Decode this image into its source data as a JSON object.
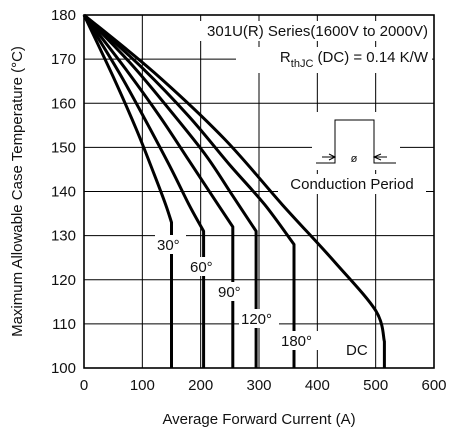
{
  "chart_data": {
    "type": "line",
    "title": "301U(R) Series(1600V to 2000V)",
    "rth_label": {
      "prefix": "R",
      "sub": "thJC",
      "suffix": " (DC) = 0.14 K/W"
    },
    "inset_label": "Conduction Period",
    "inset_symbol": "ø",
    "xlabel": "Average Forward Current (A)",
    "ylabel": "Maximum Allowable Case Temperature (°C)",
    "xlim": [
      0,
      600
    ],
    "ylim": [
      100,
      180
    ],
    "xticks": [
      0,
      100,
      200,
      300,
      400,
      500,
      600
    ],
    "yticks": [
      100,
      110,
      120,
      130,
      140,
      150,
      160,
      170,
      180
    ],
    "series": [
      {
        "name": "30°",
        "label": "30°",
        "x": [
          0,
          50,
          90,
          120,
          140,
          150,
          150
        ],
        "y": [
          180,
          166,
          154,
          144,
          137,
          133,
          100
        ]
      },
      {
        "name": "60°",
        "label": "60°",
        "x": [
          0,
          60,
          110,
          150,
          180,
          205,
          205
        ],
        "y": [
          180,
          167,
          155,
          145,
          137,
          131,
          100
        ]
      },
      {
        "name": "90°",
        "label": "90°",
        "x": [
          0,
          70,
          130,
          180,
          220,
          255,
          255
        ],
        "y": [
          180,
          168,
          157,
          147,
          139,
          132,
          100
        ]
      },
      {
        "name": "120°",
        "label": "120°",
        "x": [
          0,
          80,
          150,
          210,
          255,
          295,
          295
        ],
        "y": [
          180,
          169,
          158,
          148,
          139,
          131,
          100
        ]
      },
      {
        "name": "180°",
        "label": "180°",
        "x": [
          0,
          100,
          180,
          250,
          310,
          360,
          360
        ],
        "y": [
          180,
          168,
          157,
          146,
          137,
          128,
          100
        ]
      },
      {
        "name": "DC",
        "label": "DC",
        "x": [
          0,
          120,
          240,
          340,
          430,
          500,
          515,
          515
        ],
        "y": [
          180,
          167,
          152,
          137,
          124,
          113,
          106,
          100
        ]
      }
    ],
    "grid": true
  }
}
